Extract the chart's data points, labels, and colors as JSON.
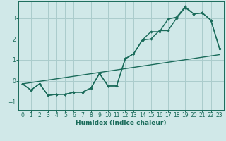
{
  "xlabel": "Humidex (Indice chaleur)",
  "ylabel": "",
  "background_color": "#d0e8e8",
  "grid_color": "#aacccc",
  "line_color": "#1a6b5a",
  "xlim": [
    -0.5,
    23.5
  ],
  "ylim": [
    -1.4,
    3.8
  ],
  "xticks": [
    0,
    1,
    2,
    3,
    4,
    5,
    6,
    7,
    8,
    9,
    10,
    11,
    12,
    13,
    14,
    15,
    16,
    17,
    18,
    19,
    20,
    21,
    22,
    23
  ],
  "yticks": [
    -1,
    0,
    1,
    2,
    3
  ],
  "line1_x": [
    0,
    1,
    2,
    3,
    4,
    5,
    6,
    7,
    8,
    9,
    10,
    11,
    12,
    13,
    14,
    15,
    16,
    17,
    18,
    19,
    20,
    21,
    22,
    23
  ],
  "line1_y": [
    -0.15,
    -0.45,
    -0.15,
    -0.7,
    -0.65,
    -0.65,
    -0.55,
    -0.55,
    -0.35,
    0.35,
    -0.25,
    -0.25,
    1.05,
    1.3,
    1.95,
    2.0,
    2.4,
    2.4,
    3.0,
    3.5,
    3.2,
    3.25,
    2.9,
    1.55
  ],
  "line2_x": [
    0,
    1,
    2,
    3,
    4,
    5,
    6,
    7,
    8,
    9,
    10,
    11,
    12,
    13,
    14,
    15,
    16,
    17,
    18,
    19,
    20,
    21,
    22,
    23
  ],
  "line2_y": [
    -0.15,
    -0.45,
    -0.15,
    -0.7,
    -0.65,
    -0.65,
    -0.55,
    -0.55,
    -0.35,
    0.35,
    -0.25,
    -0.25,
    1.05,
    1.3,
    1.95,
    2.35,
    2.35,
    2.95,
    3.05,
    3.55,
    3.2,
    3.25,
    2.9,
    1.55
  ],
  "line3_x": [
    0,
    23
  ],
  "line3_y": [
    -0.15,
    1.25
  ]
}
